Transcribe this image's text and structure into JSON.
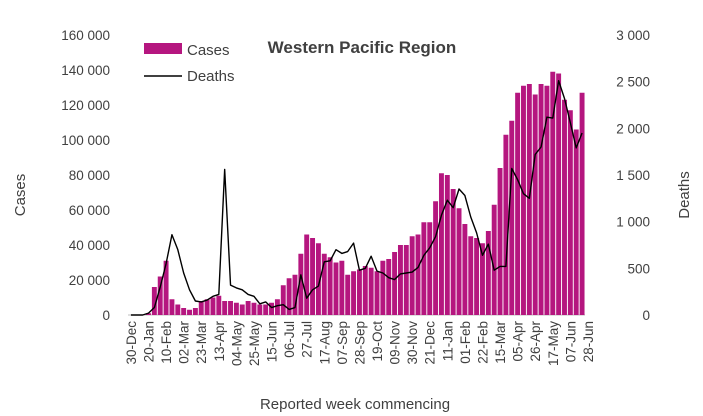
{
  "chart_data": {
    "type": "bar+line",
    "title": "Western Pacific Region",
    "xlabel": "Reported week commencing",
    "ylabel_left": "Cases",
    "ylabel_right": "Deaths",
    "ylim_left": [
      0,
      160000
    ],
    "ylim_right": [
      0,
      3000
    ],
    "yticks_left": [
      "0",
      "20 000",
      "40 000",
      "60 000",
      "80 000",
      "100 000",
      "120 000",
      "140 000",
      "160 000"
    ],
    "yticks_right": [
      "0",
      "500",
      "1 000",
      "1 500",
      "2 000",
      "2 500",
      "3 000"
    ],
    "xtick_labels": [
      "30-Dec",
      "20-Jan",
      "10-Feb",
      "02-Mar",
      "23-Mar",
      "13-Apr",
      "04-May",
      "25-May",
      "15-Jun",
      "06-Jul",
      "27-Jul",
      "17-Aug",
      "07-Sep",
      "28-Sep",
      "19-Oct",
      "09-Nov",
      "30-Nov",
      "21-Dec",
      "11-Jan",
      "01-Feb",
      "22-Feb",
      "15-Mar",
      "05-Apr",
      "26-Apr",
      "17-May",
      "07-Jun",
      "28-Jun"
    ],
    "grid": false,
    "legend_position": "top-left",
    "colors": {
      "cases": "#b5167f",
      "deaths": "#000000"
    },
    "series": [
      {
        "name": "Cases",
        "kind": "bar",
        "axis": "left",
        "values": [
          0,
          0,
          0,
          1000,
          16000,
          22000,
          31000,
          9000,
          6000,
          4000,
          3000,
          4000,
          8000,
          9000,
          10000,
          11000,
          8000,
          8000,
          7000,
          6000,
          8000,
          7000,
          6000,
          6000,
          7000,
          9000,
          17000,
          21000,
          23000,
          35000,
          46000,
          44000,
          41000,
          35000,
          33000,
          30000,
          31000,
          23000,
          25000,
          26000,
          28000,
          27000,
          25000,
          31000,
          32000,
          36000,
          40000,
          40000,
          45000,
          46000,
          53000,
          53000,
          65000,
          81000,
          80000,
          72000,
          61000,
          52000,
          45000,
          44000,
          41000,
          48000,
          63000,
          84000,
          103000,
          111000,
          127000,
          131000,
          132000,
          126000,
          132000,
          131000,
          139000,
          138000,
          123000,
          117000,
          106000,
          127000
        ]
      },
      {
        "name": "Deaths",
        "kind": "line",
        "axis": "right",
        "values": [
          0,
          0,
          0,
          20,
          80,
          300,
          550,
          860,
          700,
          450,
          270,
          150,
          140,
          160,
          200,
          220,
          1560,
          320,
          290,
          270,
          220,
          200,
          120,
          140,
          80,
          100,
          110,
          60,
          80,
          430,
          180,
          270,
          310,
          570,
          580,
          700,
          660,
          680,
          770,
          480,
          500,
          630,
          470,
          450,
          400,
          380,
          440,
          450,
          460,
          510,
          640,
          720,
          840,
          1070,
          1230,
          1150,
          1350,
          1280,
          1050,
          880,
          640,
          760,
          480,
          520,
          520,
          1570,
          1450,
          1300,
          1250,
          1720,
          1800,
          2120,
          2110,
          2510,
          2320,
          2060,
          1790,
          1950
        ]
      }
    ]
  }
}
